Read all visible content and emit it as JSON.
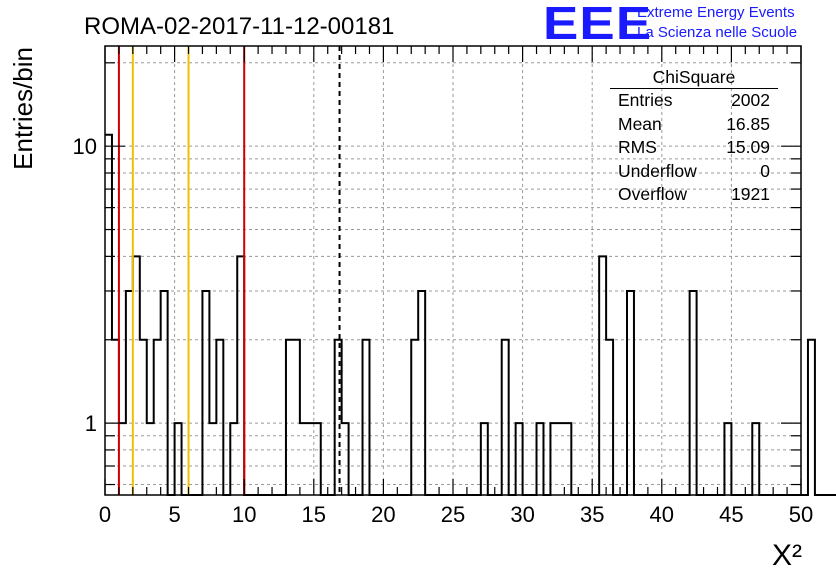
{
  "title": "ROMA-02-2017-11-12-00181",
  "logo": {
    "mark": "EEE",
    "line1": "Extreme Energy Events",
    "line2": "La Scienza nelle Scuole"
  },
  "stats": {
    "name": "ChiSquare",
    "rows": [
      {
        "label": "Entries",
        "value": "2002"
      },
      {
        "label": "Mean",
        "value": "16.85"
      },
      {
        "label": "RMS",
        "value": "15.09"
      },
      {
        "label": "Underflow",
        "value": "0"
      },
      {
        "label": "Overflow",
        "value": "1921"
      }
    ]
  },
  "chart_data": {
    "type": "bar",
    "histogram": true,
    "xlabel": "X²",
    "ylabel": "Entries/bin",
    "xlim": [
      0,
      50
    ],
    "ylim": [
      0.55,
      23
    ],
    "ylog": true,
    "grid": true,
    "bin_width": 0.5,
    "x_ticks": [
      0,
      5,
      10,
      15,
      20,
      25,
      30,
      35,
      40,
      45,
      50
    ],
    "y_ticks": [
      1,
      10
    ],
    "values": [
      11,
      2,
      1,
      3,
      4,
      2,
      1,
      2,
      3,
      0,
      1,
      0,
      0,
      0,
      3,
      1,
      2,
      0,
      1,
      4,
      0,
      0,
      0,
      0,
      0,
      0,
      2,
      2,
      1,
      1,
      1,
      0,
      0,
      2,
      1,
      0,
      0,
      2,
      0,
      0,
      0,
      0,
      0,
      0,
      2,
      3,
      0,
      0,
      0,
      0,
      0,
      0,
      0,
      0,
      1,
      0,
      0,
      2,
      0,
      1,
      0,
      0,
      1,
      0,
      1,
      1,
      1,
      0,
      0,
      0,
      0,
      4,
      2,
      0,
      0,
      3,
      0,
      0,
      0,
      0,
      0,
      0,
      0,
      0,
      3,
      0,
      0,
      0,
      0,
      1,
      0,
      0,
      0,
      1,
      0,
      0,
      0,
      0,
      0,
      0,
      0,
      2,
      0,
      0,
      0,
      0,
      0,
      0,
      0,
      0
    ],
    "reference_lines": [
      {
        "x": 1,
        "color": "#d00000",
        "style": "solid"
      },
      {
        "x": 2,
        "color": "#f0c000",
        "style": "solid"
      },
      {
        "x": 6,
        "color": "#f0c000",
        "style": "solid"
      },
      {
        "x": 10,
        "color": "#d00000",
        "style": "solid"
      },
      {
        "x": 16.85,
        "color": "#000000",
        "style": "dashed"
      }
    ]
  }
}
